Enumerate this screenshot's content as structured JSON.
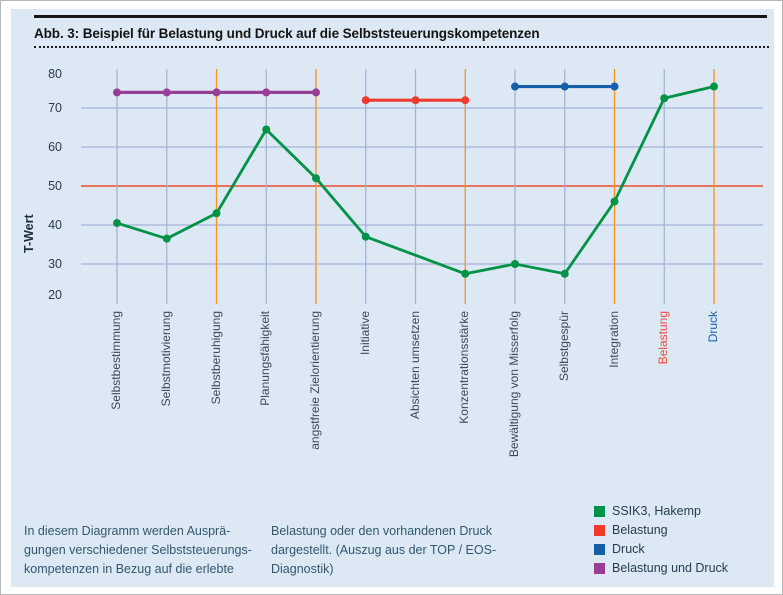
{
  "figure": {
    "title": "Abb. 3: Beispiel für Belastung und Druck auf die Selbststeuerungskompetenzen"
  },
  "chart_data": {
    "type": "line",
    "ylabel": "T-Wert",
    "ylim": [
      20,
      80
    ],
    "yticks": [
      {
        "value": 80,
        "gridline": false
      },
      {
        "value": 70,
        "gridline": true
      },
      {
        "value": 60,
        "gridline": true
      },
      {
        "value": 50,
        "gridline": true
      },
      {
        "value": 40,
        "gridline": true
      },
      {
        "value": 30,
        "gridline": true
      },
      {
        "value": 20,
        "gridline": false
      }
    ],
    "reference_line": {
      "value": 50
    },
    "categories": [
      {
        "label": "Selbstbestimmung",
        "accent_tick": false
      },
      {
        "label": "Selbstmotivierung",
        "accent_tick": false
      },
      {
        "label": "Selbstberuhigung",
        "accent_tick": true
      },
      {
        "label": "Planungsfähigkeit",
        "accent_tick": false
      },
      {
        "label": "angstfreie Zielorientierung",
        "accent_tick": true
      },
      {
        "label": "Initiative",
        "accent_tick": false
      },
      {
        "label": "Absichten umsetzen",
        "accent_tick": false
      },
      {
        "label": "Konzentrationsstärke",
        "accent_tick": true
      },
      {
        "label": "Bewältigung von Misserfolg",
        "accent_tick": false
      },
      {
        "label": "Selbstgespür",
        "accent_tick": false
      },
      {
        "label": "Integration",
        "accent_tick": true
      },
      {
        "label": "Belastung",
        "accent_tick": false,
        "label_color": "#ef4c42"
      },
      {
        "label": "Druck",
        "accent_tick": true,
        "label_color": "#1d60a8"
      }
    ],
    "series": [
      {
        "id": "ssik3",
        "name": "SSIK3, Hakemp",
        "color": "#009348",
        "stroke_width": 2.8,
        "values": [
          40.5,
          36.5,
          43,
          64.5,
          52,
          37,
          null,
          27.5,
          30,
          27.5,
          46,
          72.5,
          75.5
        ]
      },
      {
        "id": "belastung",
        "name": "Belastung",
        "color": "#ee3b2e",
        "stroke_width": 3.2,
        "values": [
          null,
          null,
          null,
          null,
          null,
          72,
          72,
          72,
          null,
          null,
          null,
          null,
          null
        ]
      },
      {
        "id": "druck",
        "name": "Druck",
        "color": "#155fa9",
        "stroke_width": 3.2,
        "values": [
          null,
          null,
          null,
          null,
          null,
          null,
          null,
          null,
          75.5,
          75.5,
          75.5,
          null,
          null
        ]
      },
      {
        "id": "belastung-und-druck",
        "name": "Belastung und Druck",
        "color": "#993e97",
        "stroke_width": 3.2,
        "values": [
          74,
          74,
          74,
          74,
          74,
          null,
          null,
          null,
          null,
          null,
          null,
          null,
          null
        ]
      }
    ],
    "legend": {
      "position": "bottom-right",
      "entries": [
        "SSIK3, Hakemp",
        "Belastung",
        "Druck",
        "Belastung und Druck"
      ]
    },
    "colors": {
      "background": "#dce9f5",
      "grid": "#a5b3d7",
      "tick_accent": "#f6921e",
      "reference": "#ee4c2c"
    }
  },
  "footer": {
    "col1_lines": [
      "In diesem Diagramm werden Ausprä-",
      "gungen verschiedener Selbststeuerungs-",
      "kompetenzen in Bezug auf die erlebte"
    ],
    "col2_lines": [
      "Belastung oder den vorhandenen Druck",
      "dargestellt. (Auszug aus der TOP / EOS-",
      "Diagnostik)"
    ]
  }
}
